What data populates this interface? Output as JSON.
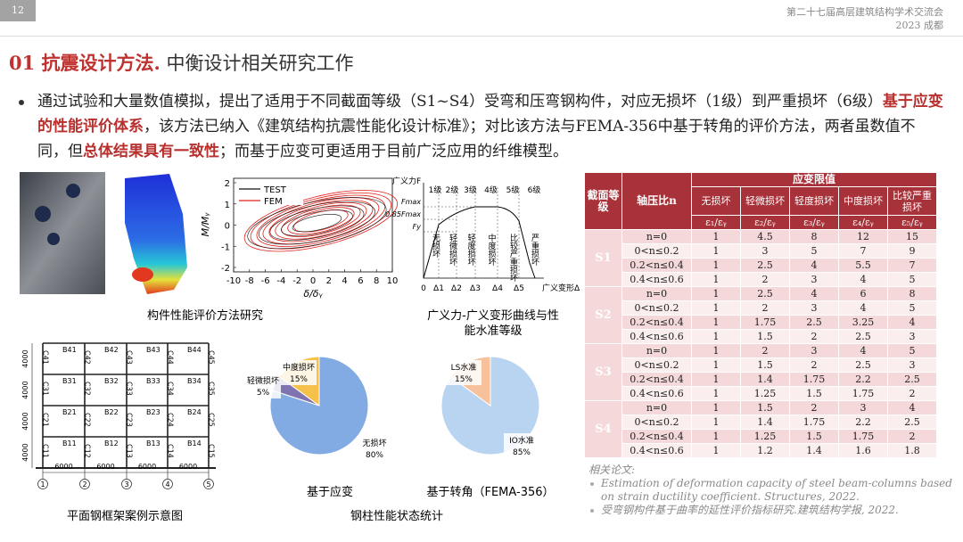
{
  "header": {
    "page_number": "12",
    "conference": "第二十七届高层建筑结构学术交流会",
    "location": "2023 成都"
  },
  "title": {
    "section": "01 抗震设计方法.",
    "subtitle": "中衡设计相关研究工作"
  },
  "bullet": {
    "segments": [
      {
        "text": "通过试验和大量数值模拟，提出了适用于不同截面等级（S1~S4）受弯和压弯钢构件，对应无损坏（1级）到严重损坏（6级）",
        "emphasis": false
      },
      {
        "text": "基于应变的性能评价体系",
        "emphasis": true
      },
      {
        "text": "，该方法已纳入《建筑结构抗震性能化设计标准》；对比该方法与FEMA-356中基于转角的评价方法，两者虽数值不同，但",
        "emphasis": false
      },
      {
        "text": "总体结果具有一致性",
        "emphasis": true
      },
      {
        "text": "；而基于应变可更适用于目前广泛应用的纤维模型。",
        "emphasis": false
      }
    ]
  },
  "hysteresis": {
    "legend": [
      "TEST",
      "FEM"
    ],
    "y_label": "M/Mᵧ",
    "x_label": "δ/δᵧ",
    "xticks": [
      -10,
      -8,
      -6,
      -4,
      -2,
      0,
      2,
      4,
      6,
      8,
      10
    ],
    "yticks": [
      -2,
      -1,
      0,
      1,
      2
    ]
  },
  "capacity_curve": {
    "y_label": "广义力F",
    "x_label": "广义变形Δ",
    "grades": [
      "1级",
      "2级",
      "3级",
      "4级",
      "5级",
      "6级"
    ],
    "force_levels": [
      "Fmax",
      "0.85Fmax",
      "Fy"
    ],
    "origin": "0",
    "deformations": [
      "Δ1",
      "Δ2",
      "Δ3",
      "Δ4",
      "Δ5"
    ],
    "states": [
      "无损坏",
      "轻微损坏",
      "轻度损坏",
      "中度损坏",
      "比较严重损坏",
      "严重损坏"
    ]
  },
  "captions": {
    "component": "构件性能评价方法研究",
    "curve": "广义力-广义变形曲线与性能水准等级",
    "frame": "平面钢框架案例示意图",
    "statistics": "钢柱性能状态统计"
  },
  "frame": {
    "beams": [
      [
        "B41",
        "B42",
        "B43",
        "B44"
      ],
      [
        "B31",
        "B32",
        "B33",
        "B34"
      ],
      [
        "B21",
        "B22",
        "B23",
        "B24"
      ],
      [
        "B11",
        "B12",
        "B13",
        "B14"
      ]
    ],
    "columns": [
      [
        "C41",
        "C42",
        "C43",
        "C44",
        "C45"
      ],
      [
        "C31",
        "C32",
        "C33",
        "C34",
        "C35"
      ],
      [
        "C21",
        "C22",
        "C23",
        "C24",
        "C25"
      ],
      [
        "C11",
        "C12",
        "C13",
        "C14",
        "C15"
      ]
    ],
    "heights": [
      "4000",
      "4000",
      "4000",
      "4000"
    ],
    "spans": [
      "6000",
      "6000",
      "6000",
      "6000"
    ],
    "axes": [
      "1",
      "2",
      "3",
      "4",
      "5"
    ]
  },
  "chart_data": [
    {
      "type": "pie",
      "title": "基于应变",
      "categories": [
        "无损坏",
        "轻微损坏",
        "中度损坏"
      ],
      "values": [
        80,
        5,
        15
      ],
      "value_labels": [
        "80%",
        "5%",
        "15%"
      ],
      "colors": [
        "#82aae3",
        "#7f73b0",
        "#f5c14a"
      ]
    },
    {
      "type": "pie",
      "title": "基于转角（FEMA-356）",
      "categories": [
        "IO水准",
        "LS水准"
      ],
      "values": [
        85,
        15
      ],
      "value_labels": [
        "85%",
        "15%"
      ],
      "colors": [
        "#b9d4f1",
        "#f7c29b"
      ]
    }
  ],
  "table": {
    "header": {
      "section": "截面等级",
      "ratio": "轴压比n",
      "limits": "应变限值",
      "states": [
        "无损坏",
        "轻微损坏",
        "轻度损坏",
        "中度损坏",
        "比较严重损坏"
      ],
      "strains": [
        "ε₁/εᵧ",
        "ε₂/εᵧ",
        "ε₃/εᵧ",
        "ε₄/εᵧ",
        "ε₅/εᵧ"
      ]
    },
    "groups": [
      {
        "section": "S1",
        "rows": [
          {
            "ratio": "n=0",
            "values": [
              1,
              4.5,
              8,
              12,
              15
            ]
          },
          {
            "ratio": "0<n≤0.2",
            "values": [
              1,
              3,
              5,
              7,
              9
            ]
          },
          {
            "ratio": "0.2<n≤0.4",
            "values": [
              1,
              2.5,
              4,
              5.5,
              7
            ]
          },
          {
            "ratio": "0.4<n≤0.6",
            "values": [
              1,
              2,
              3,
              4,
              5
            ]
          }
        ]
      },
      {
        "section": "S2",
        "rows": [
          {
            "ratio": "n=0",
            "values": [
              1,
              2.5,
              4,
              6,
              8
            ]
          },
          {
            "ratio": "0<n≤0.2",
            "values": [
              1,
              2,
              3,
              4,
              5
            ]
          },
          {
            "ratio": "0.2<n≤0.4",
            "values": [
              1,
              1.75,
              2.5,
              3.25,
              4
            ]
          },
          {
            "ratio": "0.4<n≤0.6",
            "values": [
              1,
              1.5,
              2,
              2.5,
              3
            ]
          }
        ]
      },
      {
        "section": "S3",
        "rows": [
          {
            "ratio": "n=0",
            "values": [
              1,
              2,
              3,
              4,
              5
            ]
          },
          {
            "ratio": "0<n≤0.2",
            "values": [
              1,
              1.5,
              2,
              2.5,
              3
            ]
          },
          {
            "ratio": "0.2<n≤0.4",
            "values": [
              1,
              1.4,
              1.75,
              2.2,
              2.5
            ]
          },
          {
            "ratio": "0.4<n≤0.6",
            "values": [
              1,
              1.25,
              1.5,
              1.75,
              2
            ]
          }
        ]
      },
      {
        "section": "S4",
        "rows": [
          {
            "ratio": "n=0",
            "values": [
              1,
              1.5,
              2,
              3,
              4
            ]
          },
          {
            "ratio": "0<n≤0.2",
            "values": [
              1,
              1.4,
              1.75,
              2.2,
              2.5
            ]
          },
          {
            "ratio": "0.2<n≤0.4",
            "values": [
              1,
              1.25,
              1.5,
              1.75,
              2
            ]
          },
          {
            "ratio": "0.4<n≤0.6",
            "values": [
              1,
              1.2,
              1.4,
              1.6,
              1.8
            ]
          }
        ]
      }
    ]
  },
  "references": {
    "heading": "相关论文:",
    "items": [
      "Estimation of deformation capacity of steel beam-columns based on strain ductility coefficient. Structures, 2022.",
      "受弯钢构件基于曲率的延性评价指标研究.建筑结构学报, 2022."
    ]
  }
}
